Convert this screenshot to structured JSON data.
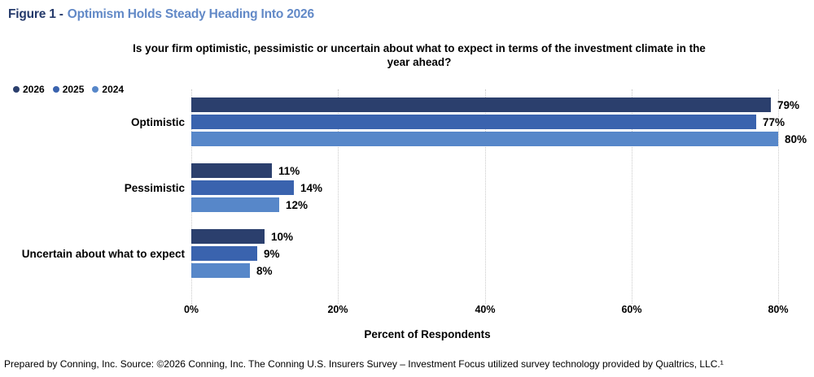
{
  "figure": {
    "label": "Figure 1 -",
    "title": "Optimism Holds Steady Heading Into 2026"
  },
  "question": "Is your firm optimistic, pessimistic or uncertain about what to expect in terms of the investment climate in the year ahead?",
  "chart_data": {
    "type": "bar",
    "orientation": "horizontal",
    "title": "Is your firm optimistic, pessimistic or uncertain about what to expect in terms of the investment climate in the year ahead?",
    "categories": [
      "Optimistic",
      "Pessimistic",
      "Uncertain about what to expect"
    ],
    "series": [
      {
        "name": "2026",
        "color": "#2B3F6D",
        "values": [
          79,
          11,
          10
        ]
      },
      {
        "name": "2025",
        "color": "#3A63AE",
        "values": [
          77,
          14,
          9
        ]
      },
      {
        "name": "2024",
        "color": "#5787C9",
        "values": [
          80,
          12,
          8
        ]
      }
    ],
    "value_suffix": "%",
    "xlabel": "Percent of Respondents",
    "x_ticks": [
      "0%",
      "20%",
      "40%",
      "60%",
      "80%"
    ],
    "xlim": [
      0,
      80
    ],
    "grid": "vertical-dotted",
    "legend_position": "top-left"
  },
  "footer": {
    "text": "Prepared by Conning, Inc. Source: ©2026 Conning, Inc. The Conning U.S. Insurers Survey – Investment Focus utilized survey technology provided by Qualtrics, LLC.¹"
  },
  "colors": {
    "figure_label": "#253A6B",
    "figure_title": "#6289C7",
    "gridline": "#C9C9C9",
    "text": "#000000"
  }
}
